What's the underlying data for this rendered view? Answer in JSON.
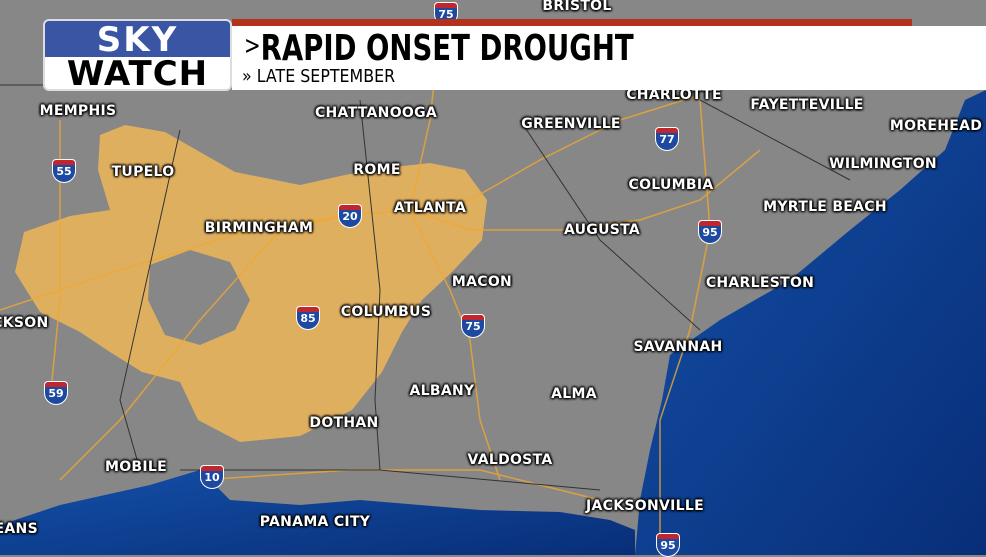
{
  "header": {
    "logo_top": "SKY",
    "logo_bottom": "WATCH",
    "title_prefix": ">",
    "title": "RAPID ONSET DROUGHT",
    "subtitle_prefix": "»",
    "subtitle": "LATE SEPTEMBER"
  },
  "colors": {
    "land": "#878787",
    "ocean": "#0b3f8f",
    "drought": "#e6b25c",
    "header_blue": "#3a55a4",
    "header_red": "#b3321c"
  },
  "cities": [
    "BRISTOL",
    "MEMPHIS",
    "CHATTANOOGA",
    "CHARLOTTE",
    "FAYETTEVILLE",
    "MOREHEAD",
    "TUPELO",
    "GREENVILLE",
    "WILMINGTON",
    "ROME",
    "COLUMBIA",
    "BIRMINGHAM",
    "ATLANTA",
    "MYRTLE BEACH",
    "AUGUSTA",
    "MACON",
    "CHARLESTON",
    "JACKSON",
    "COLUMBUS",
    "SAVANNAH",
    "ALBANY",
    "ALMA",
    "DOTHAN",
    "VALDOSTA",
    "MOBILE",
    "JACKSONVILLE",
    "PANAMA CITY",
    "ORLEANS"
  ],
  "interstates": [
    "75",
    "55",
    "77",
    "20",
    "95",
    "85",
    "75",
    "59",
    "10",
    "95"
  ]
}
